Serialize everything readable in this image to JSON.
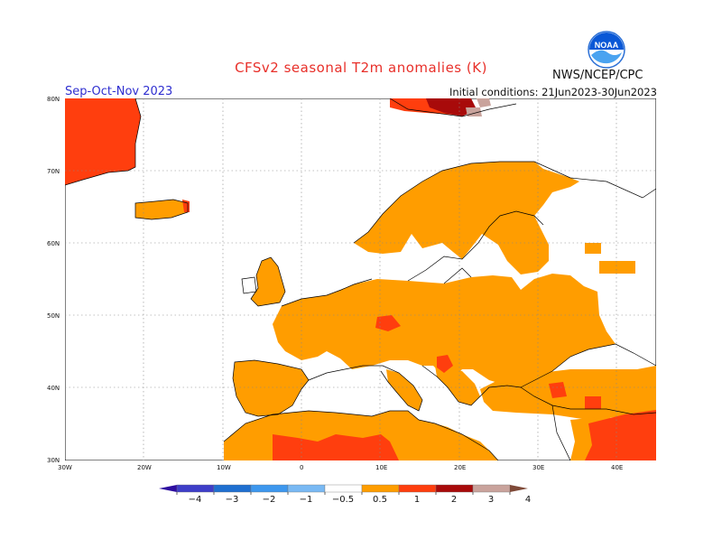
{
  "header": {
    "title": "CFSv2 seasonal T2m anomalies (K)",
    "period": "Sep-Oct-Nov 2023",
    "initial_conditions": "Initial conditions: 21Jun2023-30Jun2023",
    "agency": "NWS/NCEP/CPC",
    "logo_text": "NOAA"
  },
  "axes": {
    "lat_labels": [
      "80N",
      "70N",
      "60N",
      "50N",
      "40N",
      "30N"
    ],
    "lon_labels": [
      "30W",
      "20W",
      "10W",
      "0",
      "10E",
      "20E",
      "30E",
      "40E"
    ]
  },
  "legend": {
    "labels": [
      "−4",
      "−3",
      "−2",
      "−1",
      "−0.5",
      "0.5",
      "1",
      "2",
      "3",
      "4"
    ],
    "colors": [
      "#2e0ea0",
      "#3e3ec8",
      "#1f6fd0",
      "#3d97ee",
      "#79b9f4",
      "#ffffff",
      "#ff9d00",
      "#ff3e0e",
      "#a80a0a",
      "#c9a39c",
      "#7f4a38"
    ]
  },
  "colors": {
    "anomaly_0_5_to_1": "#ff9d00",
    "anomaly_1_to_2": "#ff3e0e",
    "anomaly_2_to_3": "#a80a0a",
    "anomaly_3_to_4": "#c9a39c",
    "title": "#e8302a",
    "period": "#2f2fd0"
  }
}
